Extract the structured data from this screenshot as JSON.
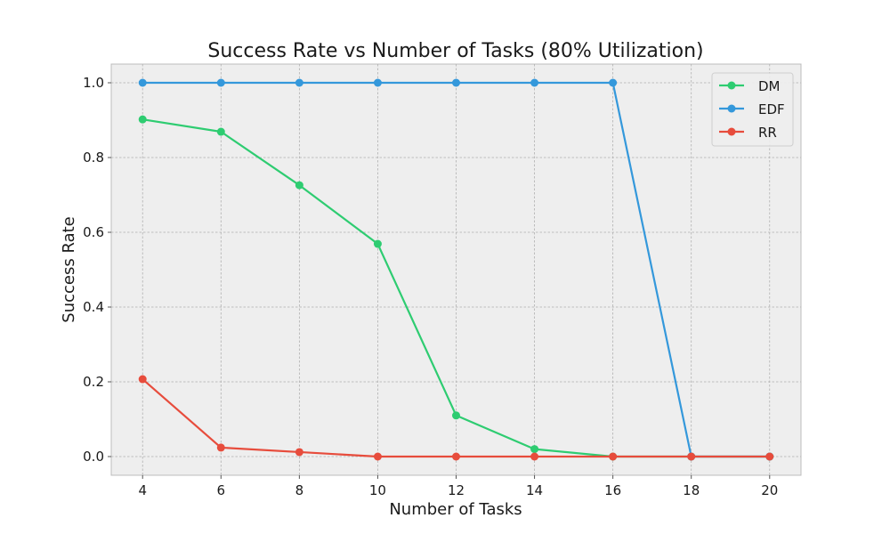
{
  "chart_data": {
    "type": "line",
    "title": "Success Rate vs Number of Tasks (80% Utilization)",
    "xlabel": "Number of Tasks",
    "ylabel": "Success Rate",
    "x": [
      4,
      6,
      8,
      10,
      12,
      14,
      16,
      18,
      20
    ],
    "xlim": [
      3.2,
      20.8
    ],
    "ylim": [
      -0.05,
      1.05
    ],
    "xticks": [
      "4",
      "6",
      "8",
      "10",
      "12",
      "14",
      "16",
      "18",
      "20"
    ],
    "yticks": [
      "0.0",
      "0.2",
      "0.4",
      "0.6",
      "0.8",
      "1.0"
    ],
    "grid": true,
    "legend_position": "top-right",
    "series": [
      {
        "name": "DM",
        "color": "#2ecc71",
        "values": [
          0.902,
          0.869,
          0.726,
          0.569,
          0.11,
          0.02,
          0.0,
          0.0,
          0.0
        ]
      },
      {
        "name": "EDF",
        "color": "#3498db",
        "values": [
          1.0,
          1.0,
          1.0,
          1.0,
          1.0,
          1.0,
          1.0,
          0.0,
          0.0
        ]
      },
      {
        "name": "RR",
        "color": "#e74c3c",
        "values": [
          0.207,
          0.024,
          0.012,
          0.0,
          0.0,
          0.0,
          0.0,
          0.0,
          0.0
        ]
      }
    ]
  }
}
